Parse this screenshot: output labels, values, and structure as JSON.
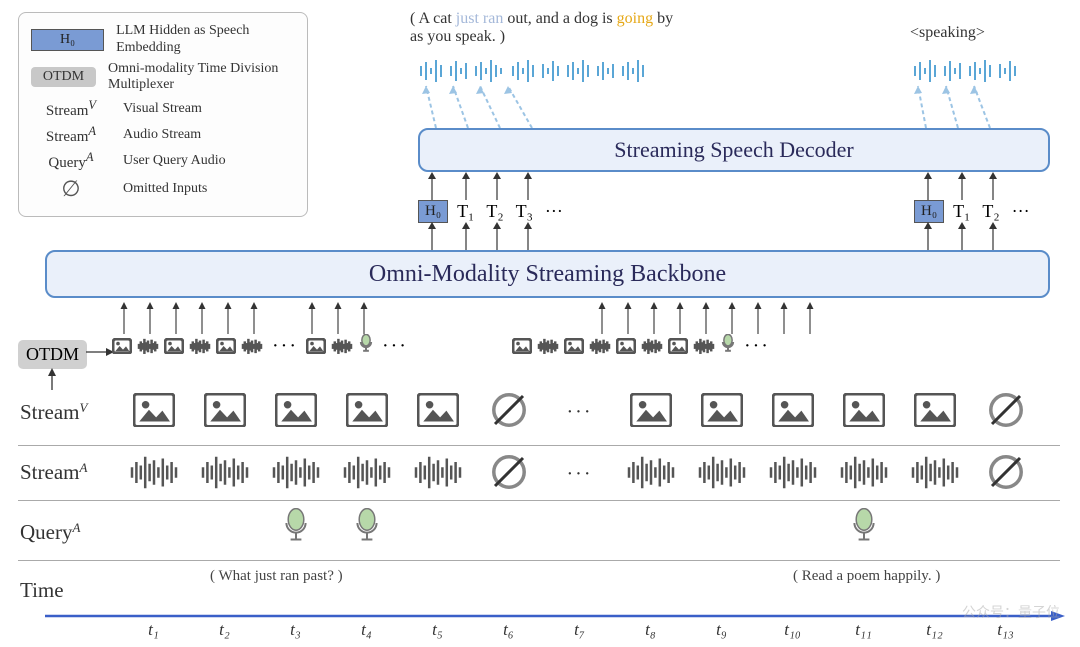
{
  "legend": {
    "h0_key": "H₀",
    "h0_desc": "LLM Hidden as Speech Embedding",
    "otdm_key": "OTDM",
    "otdm_desc": "Omni-modality Time Division Multiplexer",
    "streamV_key": "Streamⱽ",
    "streamV_desc": "Visual Stream",
    "streamA_key": "Streamᴬ",
    "streamA_desc": "Audio Stream",
    "queryA_key": "Queryᴬ",
    "queryA_desc": "User Query Audio",
    "omit_key": "∅",
    "omit_desc": "Omitted Inputs"
  },
  "output1": {
    "prefix": "( A cat ",
    "dim1": "just ran",
    "mid1": " out, and a dog is ",
    "gold": "going",
    "suffix": " by as you speak. )"
  },
  "output2": "<speaking>",
  "decoder_title": "Streaming Speech Decoder",
  "backbone_title": "Omni-Modality Streaming Backbone",
  "tokens1": [
    "H₀",
    "T₁",
    "T₂",
    "T₃",
    "···"
  ],
  "tokens2": [
    "H₀",
    "T₁",
    "T₂",
    "···"
  ],
  "otdm_label": "OTDM",
  "streams": {
    "visual_label": "Stream",
    "visual_super": "V",
    "audio_label": "Stream",
    "audio_super": "A",
    "query_label": "Query",
    "query_super": "A",
    "time_label": "Time"
  },
  "visual_row": [
    "img",
    "img",
    "img",
    "img",
    "img",
    "null",
    "dots",
    "img",
    "img",
    "img",
    "img",
    "img",
    "null"
  ],
  "audio_row": [
    "wave",
    "wave",
    "wave",
    "wave",
    "wave",
    "null",
    "dots",
    "wave",
    "wave",
    "wave",
    "wave",
    "wave",
    "null"
  ],
  "query_row": [
    "",
    "",
    "mic",
    "mic",
    "",
    "",
    "",
    "",
    "",
    "",
    "mic",
    "",
    ""
  ],
  "time_ticks": [
    "t₁",
    "t₂",
    "t₃",
    "t₄",
    "t₅",
    "t₆",
    "t₇",
    "t₈",
    "t₉",
    "t₁₀",
    "t₁₁",
    "t₁₂",
    "t₁₃"
  ],
  "query_text_1": "( What just ran past? )",
  "query_text_2": "( Read a poem happily. )",
  "colors": {
    "box_bg": "#eaf0fa",
    "box_border": "#5a8cc9",
    "h0_bg": "#7a9bd4",
    "wave_blue": "#5aa6d6",
    "icon_gray": "#555555",
    "mic_green": "#b7d8a9",
    "null_gray": "#888888",
    "axis_blue": "#3a5fc8"
  },
  "watermark": "公众号：量子位"
}
